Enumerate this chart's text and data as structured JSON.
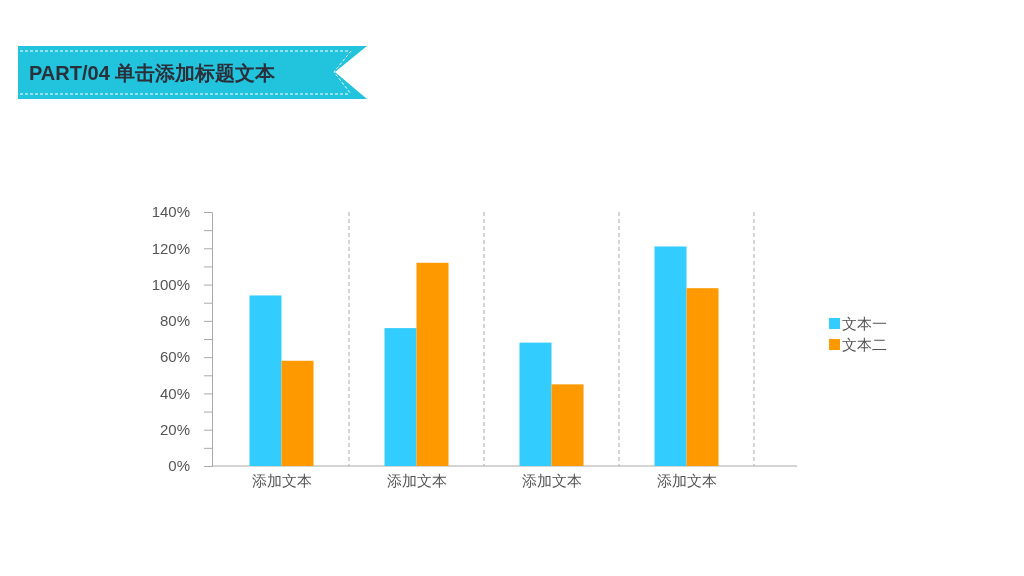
{
  "chart_data": {
    "type": "bar",
    "title": "PART/04 单击添加标题文本",
    "categories": [
      "添加文本",
      "添加文本",
      "添加文本",
      "添加文本"
    ],
    "series": [
      {
        "name": "文本一",
        "color": "#33ccff",
        "values": [
          94,
          76,
          68,
          121
        ]
      },
      {
        "name": "文本二",
        "color": "#ff9900",
        "values": [
          58,
          112,
          45,
          98
        ]
      }
    ],
    "ylim": [
      0,
      140
    ],
    "yticks": [
      {
        "value": 0,
        "label": "0%"
      },
      {
        "value": 10,
        "label": null
      },
      {
        "value": 20,
        "label": "20%"
      },
      {
        "value": 30,
        "label": null
      },
      {
        "value": 40,
        "label": "40%"
      },
      {
        "value": 50,
        "label": null
      },
      {
        "value": 60,
        "label": "60%"
      },
      {
        "value": 70,
        "label": null
      },
      {
        "value": 80,
        "label": "80%"
      },
      {
        "value": 90,
        "label": null
      },
      {
        "value": 100,
        "label": "100%"
      },
      {
        "value": 110,
        "label": null
      },
      {
        "value": 120,
        "label": "120%"
      },
      {
        "value": 130,
        "label": null
      },
      {
        "value": 140,
        "label": "140%"
      }
    ],
    "grid": "x",
    "legend": "right"
  }
}
